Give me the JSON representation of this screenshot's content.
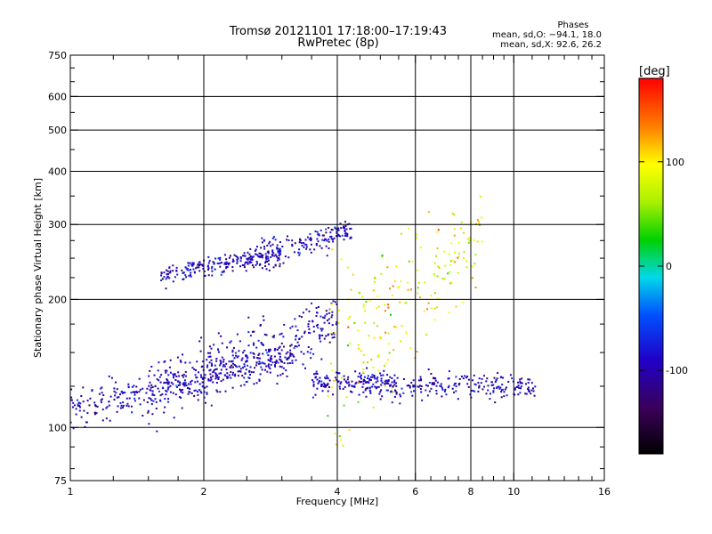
{
  "chart_data": {
    "type": "scatter",
    "title": "Tromsø 20121101 17:18:00–17:19:43",
    "subtitle": "RwPretec (8p)",
    "xlabel": "Frequency [MHz]",
    "ylabel": "Stationary phase Virtual Height [km]",
    "xscale": "log",
    "yscale": "log",
    "xlim": [
      1,
      16
    ],
    "ylim": [
      75,
      750
    ],
    "grid": true,
    "x_ticks": [
      1,
      2,
      4,
      6,
      8,
      10,
      16
    ],
    "y_ticks": [
      75,
      100,
      200,
      300,
      400,
      500,
      600,
      750
    ],
    "y_minor_ticks": [
      80,
      90,
      125,
      150,
      175,
      225,
      250,
      275,
      350,
      450,
      550,
      650,
      700
    ],
    "x_minor_ticks": [
      1.25,
      1.5,
      1.75,
      2.5,
      3,
      3.5,
      4.5,
      5,
      5.5,
      6.5,
      7,
      7.5,
      8.5,
      9,
      9.5,
      11,
      12,
      13,
      14,
      15
    ],
    "stats": {
      "heading": "Phases",
      "line_o": "mean, sd,O: −94.1, 18.0",
      "line_x": "mean, sd,X:  92.6, 26.2"
    },
    "colorbar": {
      "label": "[deg]",
      "range": [
        -180,
        180
      ],
      "ticks": [
        100,
        0,
        -100
      ]
    },
    "series": [
      {
        "mode": "O",
        "mean_phase": -94.1,
        "sd_phase": 18.0,
        "traces": [
          {
            "f_start": 1.0,
            "f_end": 3.2,
            "h_start": 110,
            "h_end": 148,
            "spread": 6
          },
          {
            "f_start": 1.5,
            "f_end": 4.0,
            "h_start": 122,
            "h_end": 175,
            "spread": 12
          },
          {
            "f_start": 1.6,
            "f_end": 3.0,
            "h_start": 228,
            "h_end": 255,
            "spread": 6
          },
          {
            "f_start": 2.5,
            "f_end": 4.3,
            "h_start": 250,
            "h_end": 290,
            "spread": 10
          },
          {
            "f_start": 3.5,
            "f_end": 11.2,
            "h_start": 128,
            "h_end": 124,
            "spread": 4
          }
        ]
      },
      {
        "mode": "X",
        "mean_phase": 92.6,
        "sd_phase": 26.2,
        "traces": [
          {
            "f_start": 3.8,
            "f_end": 8.5,
            "h_start": 140,
            "h_end": 290,
            "spread": 40
          }
        ]
      }
    ]
  }
}
